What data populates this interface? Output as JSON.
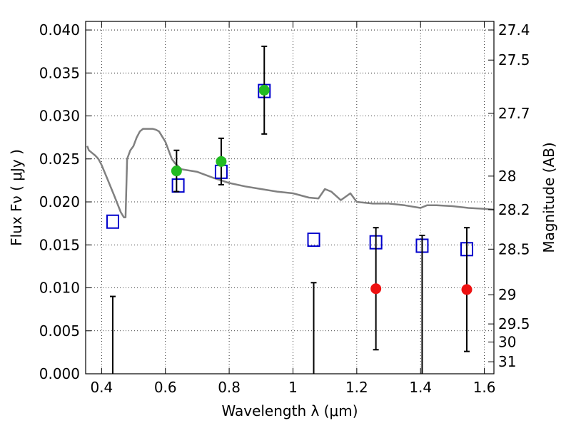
{
  "chart_data": {
    "type": "scatter",
    "xlabel": "Wavelength  λ (μm)",
    "ylabel_left": "Flux  Fν  ( μJy )",
    "ylabel_right": "Magnitude (AB)",
    "xlim": [
      0.35,
      1.63
    ],
    "ylim": [
      0.0,
      0.041
    ],
    "grid": true,
    "x_ticks": [
      0.4,
      0.6,
      0.8,
      1.0,
      1.2,
      1.4,
      1.6
    ],
    "x_tick_labels": [
      "0.4",
      "0.6",
      "0.8",
      "1",
      "1.2",
      "1.4",
      "1.6"
    ],
    "y_ticks": [
      0.0,
      0.005,
      0.01,
      0.015,
      0.02,
      0.025,
      0.03,
      0.035,
      0.04
    ],
    "y_tick_labels": [
      "0.000",
      "0.005",
      "0.010",
      "0.015",
      "0.020",
      "0.025",
      "0.030",
      "0.035",
      "0.040"
    ],
    "right_ticks": [
      {
        "label": "27.4",
        "flux": 0.04
      },
      {
        "label": "27.5",
        "flux": 0.0365
      },
      {
        "label": "27.7",
        "flux": 0.0303
      },
      {
        "label": "28",
        "flux": 0.023
      },
      {
        "label": "28.2",
        "flux": 0.0191
      },
      {
        "label": "28.5",
        "flux": 0.0145
      },
      {
        "label": "29",
        "flux": 0.0092
      },
      {
        "label": "29.5",
        "flux": 0.0058
      },
      {
        "label": "30",
        "flux": 0.0037
      },
      {
        "label": "31",
        "flux": 0.0014
      }
    ],
    "series": [
      {
        "kind": "model_spectrum",
        "color": "#808080",
        "x": [
          0.355,
          0.36,
          0.37,
          0.38,
          0.39,
          0.4,
          0.42,
          0.44,
          0.46,
          0.47,
          0.475,
          0.48,
          0.49,
          0.5,
          0.51,
          0.52,
          0.53,
          0.54,
          0.55,
          0.56,
          0.57,
          0.58,
          0.6,
          0.62,
          0.63,
          0.65,
          0.7,
          0.75,
          0.8,
          0.85,
          0.9,
          0.95,
          1.0,
          1.05,
          1.08,
          1.1,
          1.12,
          1.15,
          1.18,
          1.2,
          1.25,
          1.3,
          1.35,
          1.4,
          1.42,
          1.45,
          1.5,
          1.55,
          1.6,
          1.63
        ],
        "y": [
          0.0265,
          0.026,
          0.0257,
          0.0254,
          0.025,
          0.0243,
          0.0225,
          0.0207,
          0.0188,
          0.0182,
          0.0182,
          0.025,
          0.026,
          0.0265,
          0.0275,
          0.0282,
          0.0285,
          0.0285,
          0.0285,
          0.0285,
          0.0284,
          0.0282,
          0.027,
          0.025,
          0.0245,
          0.0238,
          0.0235,
          0.0228,
          0.0222,
          0.0218,
          0.0215,
          0.0212,
          0.021,
          0.0205,
          0.0204,
          0.0215,
          0.0212,
          0.0202,
          0.021,
          0.02,
          0.0198,
          0.0198,
          0.0196,
          0.0193,
          0.0196,
          0.0196,
          0.0195,
          0.0193,
          0.0192,
          0.0191
        ]
      },
      {
        "kind": "model_points",
        "marker": "open-square",
        "color": "#0000cc",
        "x": [
          0.435,
          0.64,
          0.775,
          0.91,
          1.065,
          1.26,
          1.405,
          1.545
        ],
        "y": [
          0.0177,
          0.0219,
          0.0235,
          0.0329,
          0.0156,
          0.0153,
          0.0149,
          0.0145
        ]
      },
      {
        "kind": "observed_detected",
        "marker": "filled-circle",
        "color": "#22bb22",
        "x": [
          0.635,
          0.775,
          0.91
        ],
        "y": [
          0.0236,
          0.0247,
          0.033
        ],
        "err": [
          0.0024,
          0.0027,
          0.0051
        ]
      },
      {
        "kind": "observed_other",
        "marker": "filled-circle",
        "color": "#ee1111",
        "x": [
          1.26,
          1.545
        ],
        "y": [
          0.0099,
          0.0098
        ],
        "err": [
          0.0071,
          0.0072
        ]
      },
      {
        "kind": "upper_limits",
        "color": "#000000",
        "x": [
          0.435,
          1.065,
          1.405
        ],
        "y": [
          0.0,
          0.0,
          0.0
        ],
        "upper": [
          0.009,
          0.0106,
          0.0161
        ]
      }
    ]
  }
}
